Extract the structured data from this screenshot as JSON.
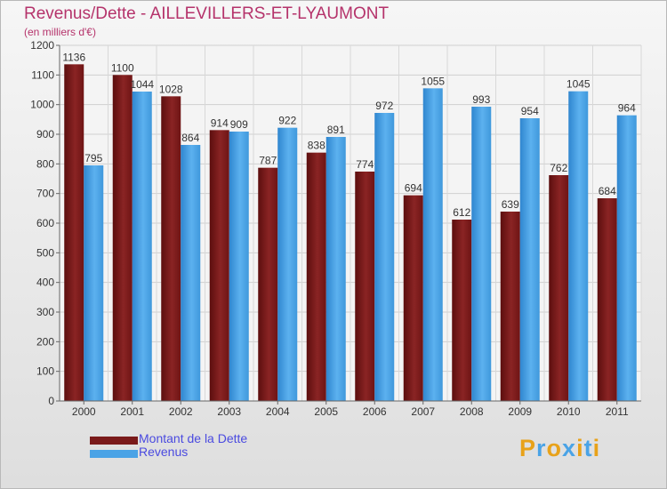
{
  "title": "Revenus/Dette - AILLEVILLERS-ET-LYAUMONT",
  "subtitle": "(en milliers d'€)",
  "colors": {
    "dette": "#7a1a1a",
    "revenus": "#4aa3e6",
    "title": "#b5336b",
    "legend_text": "#4a4ae0"
  },
  "legend": [
    {
      "label": "Montant de la Dette",
      "color": "#7a1a1a"
    },
    {
      "label": "Revenus",
      "color": "#4aa3e6"
    }
  ],
  "logo": {
    "text": "Proxiti",
    "colors": [
      "#e8a21a",
      "#4aa3e6",
      "#e8a21a",
      "#4aa3e6",
      "#e8a21a",
      "#4aa3e6",
      "#e8a21a"
    ]
  },
  "chart_data": {
    "type": "bar",
    "categories": [
      "2000",
      "2001",
      "2002",
      "2003",
      "2004",
      "2005",
      "2006",
      "2007",
      "2008",
      "2009",
      "2010",
      "2011"
    ],
    "series": [
      {
        "name": "Montant de la Dette",
        "values": [
          1136,
          1100,
          1028,
          914,
          787,
          838,
          774,
          694,
          612,
          639,
          762,
          684
        ]
      },
      {
        "name": "Revenus",
        "values": [
          795,
          1044,
          864,
          909,
          922,
          891,
          972,
          1055,
          993,
          954,
          1045,
          964
        ]
      }
    ],
    "yticks": [
      0,
      100,
      200,
      300,
      400,
      500,
      600,
      700,
      800,
      900,
      1000,
      1100,
      1200
    ],
    "ylim": [
      0,
      1200
    ],
    "grid": true,
    "legend_position": "bottom-left"
  }
}
